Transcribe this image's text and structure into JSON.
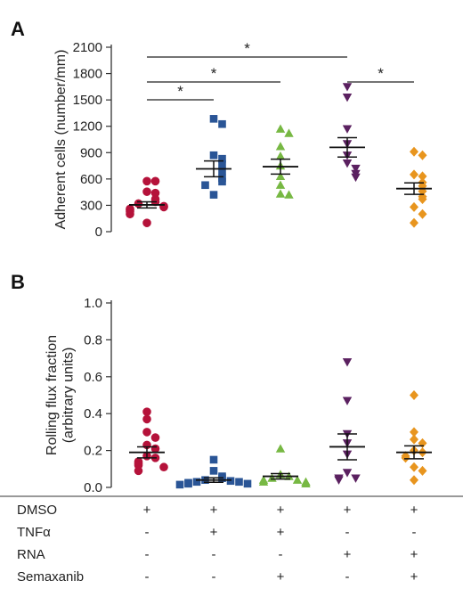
{
  "chart_data": [
    {
      "panel": "A",
      "type": "scatter",
      "ylabel": "Adherent cells (number/mm)",
      "ylim": [
        0,
        2100
      ],
      "yticks": [
        "0",
        "300",
        "600",
        "900",
        "1200",
        "1500",
        "1800",
        "2100"
      ],
      "series": [
        {
          "color": "#b5123a",
          "marker": "circle",
          "mean": 305,
          "sem": 35,
          "values": [
            575,
            575,
            455,
            440,
            370,
            340,
            320,
            290,
            280,
            260,
            250,
            230,
            200,
            100
          ]
        },
        {
          "color": "#2a5596",
          "marker": "square",
          "mean": 715,
          "sem": 90,
          "values": [
            1285,
            1225,
            870,
            830,
            770,
            690,
            610,
            570,
            530,
            420
          ]
        },
        {
          "color": "#77b843",
          "marker": "triangle-up",
          "mean": 740,
          "sem": 85,
          "values": [
            1170,
            1120,
            970,
            860,
            750,
            630,
            530,
            430,
            420
          ]
        },
        {
          "color": "#5b2160",
          "marker": "triangle-down",
          "mean": 960,
          "sem": 110,
          "values": [
            1650,
            1530,
            1170,
            1000,
            870,
            780,
            720,
            660,
            620
          ]
        },
        {
          "color": "#e8951e",
          "marker": "diamond",
          "mean": 490,
          "sem": 65,
          "values": [
            910,
            870,
            650,
            630,
            560,
            520,
            460,
            400,
            370,
            280,
            200,
            100
          ]
        }
      ],
      "significance": [
        {
          "from": 0,
          "to": 1,
          "label": "*"
        },
        {
          "from": 0,
          "to": 2,
          "label": "*"
        },
        {
          "from": 0,
          "to": 3,
          "label": "*"
        },
        {
          "from": 3,
          "to": 4,
          "label": "*"
        }
      ]
    },
    {
      "panel": "B",
      "type": "scatter",
      "ylabel": "Rolling flux fraction (arbitrary units)",
      "ylabel_lines": [
        "Rolling flux fraction",
        "(arbitrary units)"
      ],
      "ylim": [
        0,
        1.0
      ],
      "yticks": [
        "0.0",
        "0.2",
        "0.4",
        "0.6",
        "0.8",
        "1.0"
      ],
      "series": [
        {
          "color": "#b5123a",
          "marker": "circle",
          "mean": 0.19,
          "sem": 0.03,
          "values": [
            0.41,
            0.37,
            0.3,
            0.27,
            0.23,
            0.21,
            0.17,
            0.16,
            0.14,
            0.13,
            0.12,
            0.11,
            0.09
          ]
        },
        {
          "color": "#2a5596",
          "marker": "square",
          "mean": 0.04,
          "sem": 0.012,
          "values": [
            0.15,
            0.09,
            0.06,
            0.05,
            0.04,
            0.035,
            0.03,
            0.03,
            0.025,
            0.02,
            0.02,
            0.015
          ]
        },
        {
          "color": "#77b843",
          "marker": "triangle-up",
          "mean": 0.06,
          "sem": 0.015,
          "values": [
            0.21,
            0.07,
            0.06,
            0.05,
            0.04,
            0.04,
            0.03,
            0.03,
            0.02
          ]
        },
        {
          "color": "#5b2160",
          "marker": "triangle-down",
          "mean": 0.22,
          "sem": 0.07,
          "values": [
            0.68,
            0.47,
            0.29,
            0.24,
            0.18,
            0.08,
            0.05,
            0.05,
            0.04
          ]
        },
        {
          "color": "#e8951e",
          "marker": "diamond",
          "mean": 0.19,
          "sem": 0.035,
          "values": [
            0.5,
            0.3,
            0.26,
            0.24,
            0.2,
            0.19,
            0.17,
            0.16,
            0.11,
            0.09,
            0.04
          ]
        }
      ]
    }
  ],
  "panel_letters": {
    "a": "A",
    "b": "B"
  },
  "conditions": {
    "rows": [
      {
        "label": "DMSO",
        "values": [
          "+",
          "+",
          "+",
          "+",
          "+"
        ]
      },
      {
        "label": "TNFα",
        "values": [
          "-",
          "+",
          "+",
          "-",
          "-"
        ]
      },
      {
        "label": "RNA",
        "values": [
          "-",
          "-",
          "-",
          "+",
          "+"
        ]
      },
      {
        "label": "Semaxanib",
        "values": [
          "-",
          "-",
          "+",
          "-",
          "+"
        ]
      }
    ]
  }
}
